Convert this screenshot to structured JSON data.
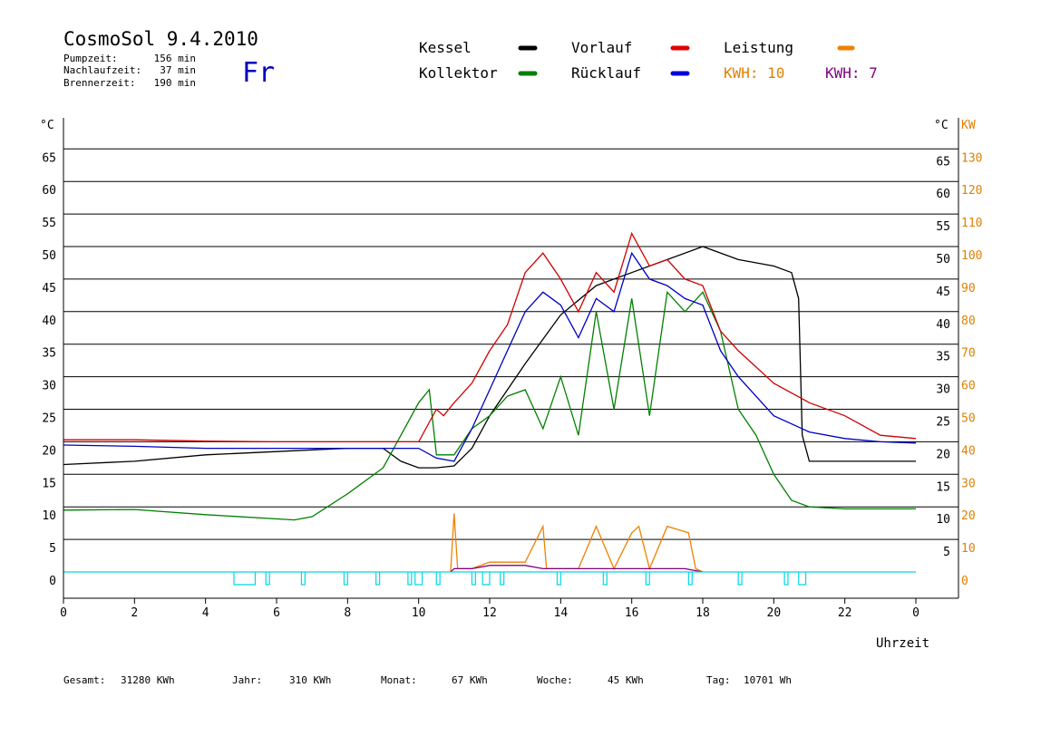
{
  "header": {
    "title": "CosmoSol 9.4.2010",
    "day": "Fr",
    "stats": [
      {
        "label": "Pumpzeit:",
        "value": "156 min"
      },
      {
        "label": "Nachlaufzeit:",
        "value": "37 min"
      },
      {
        "label": "Brennerzeit:",
        "value": "190 min"
      }
    ]
  },
  "legend": {
    "items": [
      {
        "label": "Kessel",
        "color": "#000000"
      },
      {
        "label": "Vorlauf",
        "color": "#e00000"
      },
      {
        "label": "Leistung",
        "color": "#f08000"
      },
      {
        "label": "Kollektor",
        "color": "#008000"
      },
      {
        "label": "Rücklauf",
        "color": "#0000e0"
      }
    ],
    "kwh": [
      {
        "label": "KWH: 10",
        "color": "#e08000"
      },
      {
        "label": "KWH: 7",
        "color": "#800080"
      }
    ]
  },
  "axes": {
    "y_left_unit": "°C",
    "y_right_unit_c": "°C",
    "y_right_unit_kw": "KW",
    "x_label": "Uhrzeit",
    "y_left_ticks": [
      "65",
      "60",
      "55",
      "50",
      "45",
      "40",
      "35",
      "30",
      "25",
      "20",
      "15",
      "10",
      "5",
      "0"
    ],
    "y_right_c_ticks": [
      "65",
      "60",
      "55",
      "50",
      "45",
      "40",
      "35",
      "30",
      "25",
      "20",
      "15",
      "10",
      "5"
    ],
    "y_right_kw_ticks": [
      "130",
      "120",
      "110",
      "100",
      "90",
      "80",
      "70",
      "60",
      "50",
      "40",
      "30",
      "20",
      "10",
      "0"
    ],
    "x_ticks": [
      "0",
      "2",
      "4",
      "6",
      "8",
      "10",
      "12",
      "14",
      "16",
      "18",
      "20",
      "22",
      "0"
    ]
  },
  "footer": [
    {
      "label": "Gesamt:",
      "value": "31280 KWh"
    },
    {
      "label": "Jahr:",
      "value": "310 KWh"
    },
    {
      "label": "Monat:",
      "value": "67 KWh"
    },
    {
      "label": "Woche:",
      "value": "45 KWh"
    },
    {
      "label": "Tag:",
      "value": "10701 Wh"
    }
  ],
  "colors": {
    "kessel": "#000000",
    "kollektor": "#008000",
    "vorlauf": "#d00000",
    "ruecklauf": "#0000c0",
    "leistung": "#f08000",
    "kwh2": "#800080",
    "pump": "#00d8e8",
    "kw_axis": "#e08000"
  },
  "chart_data": {
    "type": "line",
    "x_unit": "hour",
    "xlim": [
      0,
      24
    ],
    "ylim": [
      0,
      65
    ],
    "ylim_right_kw": [
      0,
      130
    ],
    "series": [
      {
        "name": "Kessel",
        "x": [
          0,
          2,
          4,
          6,
          8,
          9,
          9.5,
          10,
          10.5,
          11,
          11.5,
          12,
          13,
          14,
          15,
          16,
          17,
          18,
          19,
          20,
          20.5,
          20.7,
          20.8,
          21,
          22,
          24
        ],
        "y": [
          16.5,
          17,
          18,
          18.5,
          19,
          19,
          17,
          16,
          16,
          16.3,
          19,
          24,
          32,
          39.5,
          44,
          46,
          48,
          50,
          48,
          47,
          46,
          42,
          21,
          17,
          17,
          17
        ]
      },
      {
        "name": "Kollektor",
        "x": [
          0,
          2,
          4,
          6.5,
          7,
          8,
          9,
          9.5,
          10,
          10.3,
          10.5,
          11,
          11.5,
          12,
          12.5,
          13,
          13.5,
          14,
          14.5,
          15,
          15.5,
          16,
          16.5,
          17,
          17.5,
          18,
          18.5,
          19,
          19.5,
          20,
          20.5,
          21,
          22,
          24
        ],
        "y": [
          9.5,
          9.6,
          8.8,
          8,
          8.5,
          12,
          16,
          21,
          26,
          28,
          18,
          18,
          22,
          24,
          27,
          28,
          22,
          30,
          21,
          40,
          25,
          42,
          24,
          43,
          40,
          43,
          37,
          25,
          21,
          15,
          11,
          10,
          9.7,
          9.7
        ]
      },
      {
        "name": "Vorlauf",
        "x": [
          0,
          2,
          4,
          6,
          8,
          10,
          10.5,
          10.7,
          11,
          11.5,
          12,
          12.5,
          13,
          13.5,
          14,
          14.5,
          15,
          15.5,
          16,
          16.5,
          17,
          17.5,
          18,
          18.5,
          19,
          20,
          21,
          22,
          23,
          24
        ],
        "y": [
          20.3,
          20.3,
          20.1,
          20,
          20,
          20,
          25,
          24,
          26,
          29,
          34,
          38,
          46,
          49,
          45,
          40,
          46,
          43,
          52,
          47,
          48,
          45,
          44,
          37,
          34,
          29,
          26,
          24,
          21,
          20.5
        ]
      },
      {
        "name": "Rücklauf",
        "x": [
          0,
          2,
          4,
          6,
          8,
          10,
          10.5,
          11,
          11.5,
          12,
          12.5,
          13,
          13.5,
          14,
          14.5,
          15,
          15.5,
          16,
          16.5,
          17,
          17.5,
          18,
          18.5,
          19,
          20,
          21,
          22,
          23,
          24
        ],
        "y": [
          19.5,
          19.3,
          19,
          19,
          19,
          19,
          17.5,
          17,
          22,
          28,
          34,
          40,
          43,
          41,
          36,
          42,
          40,
          49,
          45,
          44,
          42,
          41,
          34,
          30,
          24,
          21.5,
          20.5,
          20,
          19.8
        ]
      },
      {
        "name": "Leistung",
        "x": [
          10.9,
          11,
          11.1,
          11.5,
          12,
          12.5,
          13,
          13.5,
          13.6,
          14,
          14.5,
          15,
          15.5,
          16,
          16.2,
          16.5,
          17,
          17.3,
          17.6,
          17.8,
          18
        ],
        "y": [
          0,
          18,
          1,
          1,
          3,
          3,
          3,
          14,
          1,
          1,
          1,
          14,
          1,
          12,
          14,
          1,
          14,
          13,
          12,
          1,
          0
        ],
        "unit": "KW"
      },
      {
        "name": "KWH",
        "x": [
          10.9,
          11,
          11.5,
          12,
          12.5,
          13,
          13.5,
          14,
          14.5,
          15,
          15.5,
          16,
          16.5,
          17,
          17.5,
          18
        ],
        "y": [
          0,
          1,
          1,
          2,
          2,
          2,
          1,
          1,
          1,
          1,
          1,
          1,
          1,
          1,
          1,
          0
        ],
        "unit": "KW"
      }
    ],
    "pump_intervals": [
      [
        4.8,
        5.4
      ],
      [
        5.7,
        5.8
      ],
      [
        6.7,
        6.8
      ],
      [
        7.9,
        8.0
      ],
      [
        8.8,
        8.9
      ],
      [
        9.7,
        9.8
      ],
      [
        9.9,
        10.1
      ],
      [
        10.5,
        10.6
      ],
      [
        11.5,
        11.6
      ],
      [
        11.8,
        12.0
      ],
      [
        12.3,
        12.4
      ],
      [
        13.9,
        14.0
      ],
      [
        15.2,
        15.3
      ],
      [
        16.4,
        16.5
      ],
      [
        17.6,
        17.7
      ],
      [
        19.0,
        19.1
      ],
      [
        20.3,
        20.4
      ],
      [
        20.7,
        20.9
      ]
    ]
  }
}
